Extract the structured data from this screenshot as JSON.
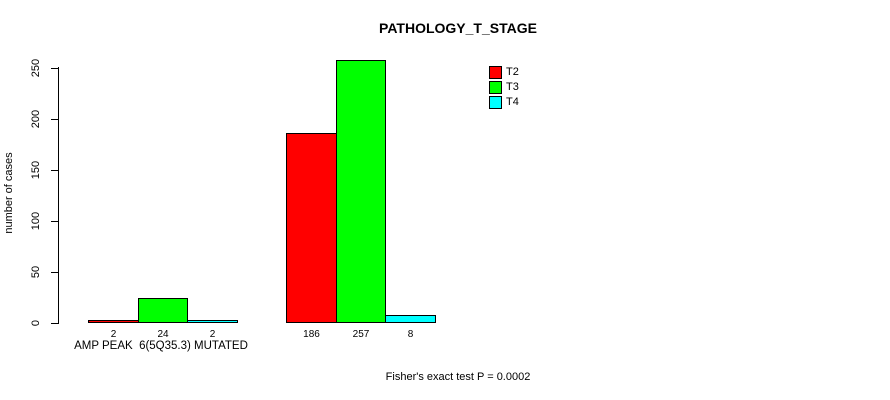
{
  "chart_data": {
    "type": "bar",
    "title": "PATHOLOGY_T_STAGE",
    "xlabel": "",
    "ylabel": "number of cases",
    "categories": [
      "AMP PEAK  6(5Q35.3) MUTATED",
      ""
    ],
    "series": [
      {
        "name": "T2",
        "color": "#ff0000",
        "values": [
          2,
          186
        ]
      },
      {
        "name": "T3",
        "color": "#00ff00",
        "values": [
          24,
          257
        ]
      },
      {
        "name": "T4",
        "color": "#00ffff",
        "values": [
          2,
          8
        ]
      }
    ],
    "ylim": [
      0,
      250
    ],
    "yticks": [
      0,
      50,
      100,
      150,
      200,
      250
    ],
    "legend_position": "top-right",
    "grid": false,
    "bar_border_color": "#000000",
    "annotation": "Fisher's exact test P = 0.0002"
  }
}
